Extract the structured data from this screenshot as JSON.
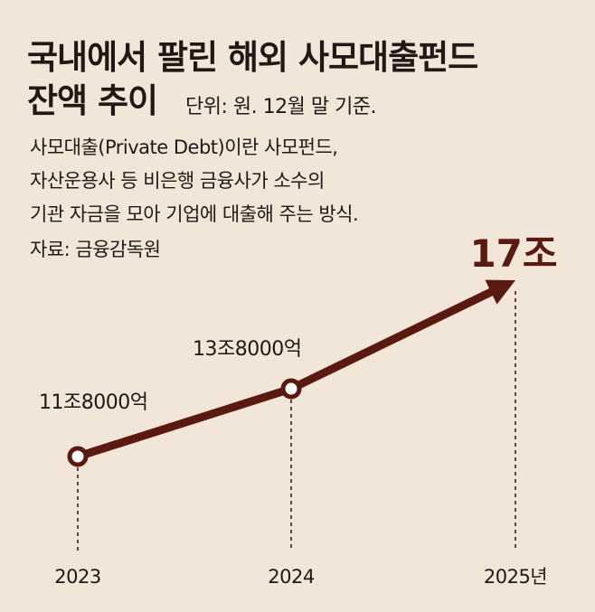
{
  "header": {
    "title_line1": "국내에서 팔린 해외 사모대출펀드",
    "title_line2": "잔액 추이",
    "unit_note": "단위: 원. 12월 말 기준."
  },
  "description": {
    "line1": "사모대출(Private Debt)이란 사모펀드,",
    "line2": "자산운용사 등 비은행 금융사가 소수의",
    "line3": "기관 자금을 모아 기업에 대출해 주는 방식."
  },
  "source": "자료: 금융감독원",
  "colors": {
    "background": "#f2e6d9",
    "line": "#5a1a10",
    "text": "#231815"
  },
  "chart_data": {
    "type": "line",
    "categories": [
      "2023",
      "2024",
      "2025년"
    ],
    "values": [
      11.8,
      13.8,
      17
    ],
    "value_labels": [
      "11조8000억",
      "13조8000억",
      "17조"
    ],
    "last_point_arrow": true,
    "grid": false,
    "legend": "none"
  }
}
